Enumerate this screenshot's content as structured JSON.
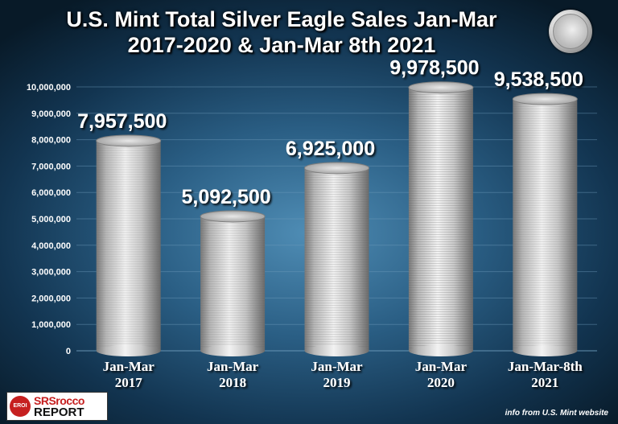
{
  "chart_data": {
    "type": "bar",
    "title": [
      "U.S. Mint Total Silver Eagle Sales Jan-Mar",
      "2017-2020 & Jan-Mar 8th 2021"
    ],
    "categories": [
      [
        "Jan-Mar",
        "2017"
      ],
      [
        "Jan-Mar",
        "2018"
      ],
      [
        "Jan-Mar",
        "2019"
      ],
      [
        "Jan-Mar",
        "2020"
      ],
      [
        "Jan-Mar-8th",
        "2021"
      ]
    ],
    "values": [
      7957500,
      5092500,
      6925000,
      9978500,
      9538500
    ],
    "data_labels": [
      "7,957,500",
      "5,092,500",
      "6,925,000",
      "9,978,500",
      "9,538,500"
    ],
    "yticks": [
      "0",
      "1,000,000",
      "2,000,000",
      "3,000,000",
      "4,000,000",
      "5,000,000",
      "6,000,000",
      "7,000,000",
      "8,000,000",
      "9,000,000",
      "10,000,000"
    ],
    "ylim": [
      0,
      10000000
    ],
    "xlabel": "",
    "ylabel": "",
    "grid": true,
    "bar_style": "stacked silver coins"
  },
  "logo": {
    "emblem": "EROI",
    "line1": "SRSrocco",
    "line2": "REPORT"
  },
  "source_note": "info from U.S. Mint website",
  "colors": {
    "background": "#2a5e84",
    "text": "#ffffff",
    "gridline": "#6f9cbb",
    "logo_red": "#c62020"
  },
  "icons": {
    "coin": "silver-eagle-coin-icon"
  }
}
